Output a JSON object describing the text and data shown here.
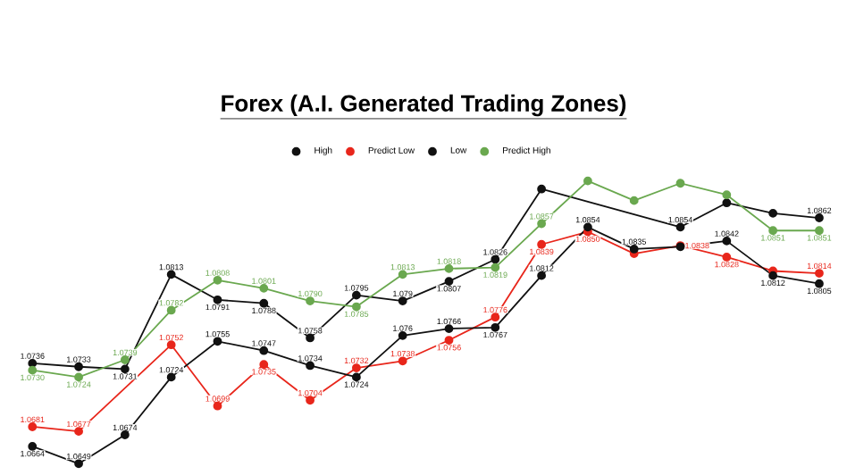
{
  "chart_data": {
    "type": "line",
    "title": "Forex (A.I. Generated Trading Zones)",
    "categories": [
      null,
      null,
      null,
      null,
      null,
      null,
      null,
      null,
      null,
      null,
      null,
      null,
      null,
      null,
      null,
      null,
      null,
      null
    ],
    "legend": "top",
    "marker": "circle",
    "line_style": "solid",
    "series": [
      {
        "name": "High",
        "color": "#111111",
        "values": [
          1.0736,
          1.0733,
          1.0731,
          1.0813,
          1.0791,
          1.0788,
          1.0758,
          1.0795,
          1.079,
          1.0807,
          1.0826,
          1.0887,
          null,
          null,
          1.0854,
          1.0875,
          1.0866,
          1.0862
        ],
        "value_labels": [
          "1.0736",
          "1.0733",
          "1.0731",
          "1.0813",
          "1.0791",
          "1.0788",
          "1.0758",
          "1.0795",
          "1.079",
          "1.0807",
          "1.0826",
          null,
          null,
          null,
          "1.0854",
          null,
          null,
          "1.0862"
        ]
      },
      {
        "name": "Predict Low",
        "color": "#e8261b",
        "values": [
          1.0681,
          1.0677,
          null,
          1.0752,
          1.0699,
          1.0735,
          1.0704,
          1.0732,
          1.0738,
          1.0756,
          1.0776,
          1.0839,
          1.085,
          1.0831,
          1.0838,
          1.0828,
          1.0816,
          1.0814
        ],
        "value_labels": [
          "1.0681",
          "1.0677",
          null,
          "1.0752",
          "1.0699",
          "1.0735",
          "1.0704",
          "1.0732",
          "1.0738",
          "1.0756",
          "1.0776",
          "1.0839",
          "1.0850",
          null,
          "1.0838",
          "1.0828",
          null,
          "1.0814"
        ]
      },
      {
        "name": "Low",
        "color": "#111111",
        "values": [
          1.0664,
          1.0649,
          1.0674,
          1.0724,
          1.0755,
          1.0747,
          1.0734,
          1.0724,
          1.076,
          1.0766,
          1.0767,
          1.0812,
          1.0854,
          1.0835,
          1.0837,
          1.0842,
          1.0812,
          1.0805
        ],
        "value_labels": [
          "1.0664",
          "1.0649",
          "1.0674",
          "1.0724",
          "1.0755",
          "1.0747",
          "1.0734",
          "1.0724",
          "1.076",
          "1.0766",
          "1.0767",
          "1.0812",
          "1.0854",
          "1.0835",
          null,
          "1.0842",
          "1.0812",
          "1.0805"
        ]
      },
      {
        "name": "Predict High",
        "color": "#6aa84f",
        "values": [
          1.073,
          1.0724,
          1.0739,
          1.0782,
          1.0808,
          1.0801,
          1.079,
          1.0785,
          1.0813,
          1.0818,
          1.0819,
          1.0857,
          1.0894,
          1.0877,
          1.0892,
          1.0882,
          1.0851,
          1.0851
        ],
        "value_labels": [
          "1.0730",
          "1.0724",
          "1.0739",
          "1.0782",
          "1.0808",
          "1.0801",
          "1.0790",
          "1.0785",
          "1.0813",
          "1.0818",
          "1.0819",
          "1.0857",
          null,
          null,
          null,
          null,
          "1.0851",
          "1.0851"
        ]
      }
    ]
  }
}
